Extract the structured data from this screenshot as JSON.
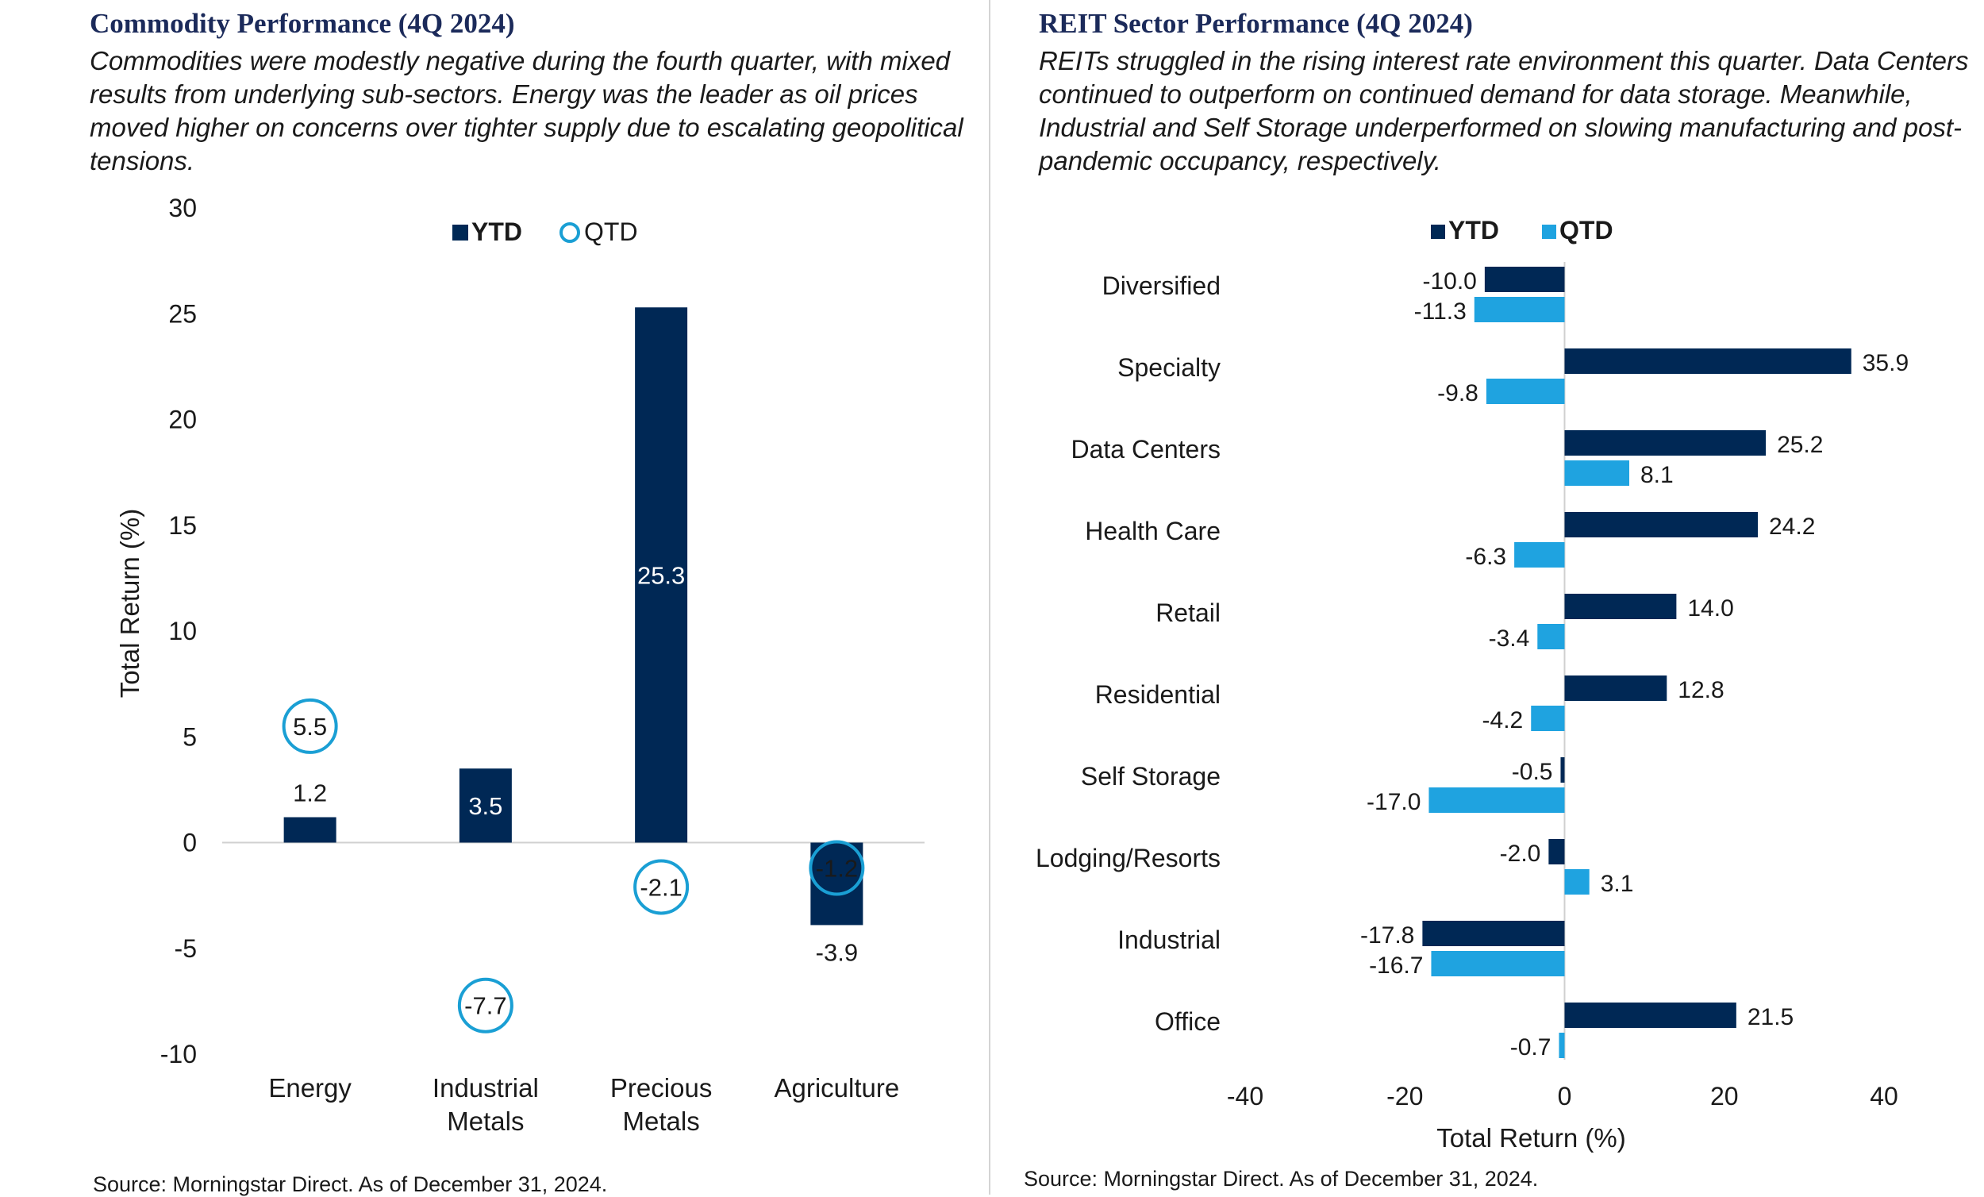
{
  "left": {
    "title": "Commodity Performance (4Q 2024)",
    "subtitle": "Commodities were modestly negative during the fourth quarter, with mixed results from underlying sub-sectors. Energy was the leader as oil prices moved higher on concerns over tighter supply due to escalating geopolitical tensions.",
    "source": "Source: Morningstar Direct. As of December 31, 2024."
  },
  "right": {
    "title": "REIT Sector Performance (4Q 2024)",
    "subtitle": "REITs struggled in the rising interest rate environment this quarter. Data Centers continued to outperform on continued demand for data storage. Meanwhile, Industrial and Self Storage underperformed on slowing manufacturing and post-pandemic occupancy, respectively.",
    "source": "Source: Morningstar Direct. As of December 31, 2024."
  },
  "colors": {
    "ytd": "#002855",
    "qtd_marker": "#1a9fd4",
    "qtd_bar": "#1fa3e0",
    "axis": "#d0d0d0",
    "title": "#1b2a5a"
  },
  "chart_data": [
    {
      "type": "bar",
      "title": "Commodity Performance (4Q 2024)",
      "categories": [
        "Energy",
        "Industrial Metals",
        "Precious Metals",
        "Agriculture"
      ],
      "category_lines": [
        [
          "Energy"
        ],
        [
          "Industrial",
          "Metals"
        ],
        [
          "Precious",
          "Metals"
        ],
        [
          "Agriculture"
        ]
      ],
      "series": [
        {
          "name": "YTD",
          "style": "bar",
          "values": [
            1.2,
            3.5,
            25.3,
            -3.9
          ]
        },
        {
          "name": "QTD",
          "style": "circle-marker",
          "values": [
            5.5,
            -7.7,
            -2.1,
            -1.2
          ]
        }
      ],
      "xlabel": "",
      "ylabel": "Total Return (%)",
      "ylim": [
        -10,
        30
      ],
      "yticks": [
        30,
        25,
        20,
        15,
        10,
        5,
        0,
        -5,
        -10
      ],
      "grid": false,
      "legend": "top-center"
    },
    {
      "type": "bar",
      "orientation": "horizontal",
      "title": "REIT Sector Performance (4Q 2024)",
      "categories": [
        "Diversified",
        "Specialty",
        "Data Centers",
        "Health Care",
        "Retail",
        "Residential",
        "Self Storage",
        "Lodging/Resorts",
        "Industrial",
        "Office"
      ],
      "series": [
        {
          "name": "YTD",
          "values": [
            -10.0,
            35.9,
            25.2,
            24.2,
            14.0,
            12.8,
            -0.5,
            -2.0,
            -17.8,
            21.5
          ]
        },
        {
          "name": "QTD",
          "values": [
            -11.3,
            -9.8,
            8.1,
            -6.3,
            -3.4,
            -4.2,
            -17.0,
            3.1,
            -16.7,
            -0.7
          ]
        }
      ],
      "xlabel": "Total Return (%)",
      "ylabel": "",
      "xlim": [
        -40,
        40
      ],
      "xticks": [
        -40,
        -20,
        0,
        20,
        40
      ],
      "grid": false,
      "legend": "top-center"
    }
  ]
}
